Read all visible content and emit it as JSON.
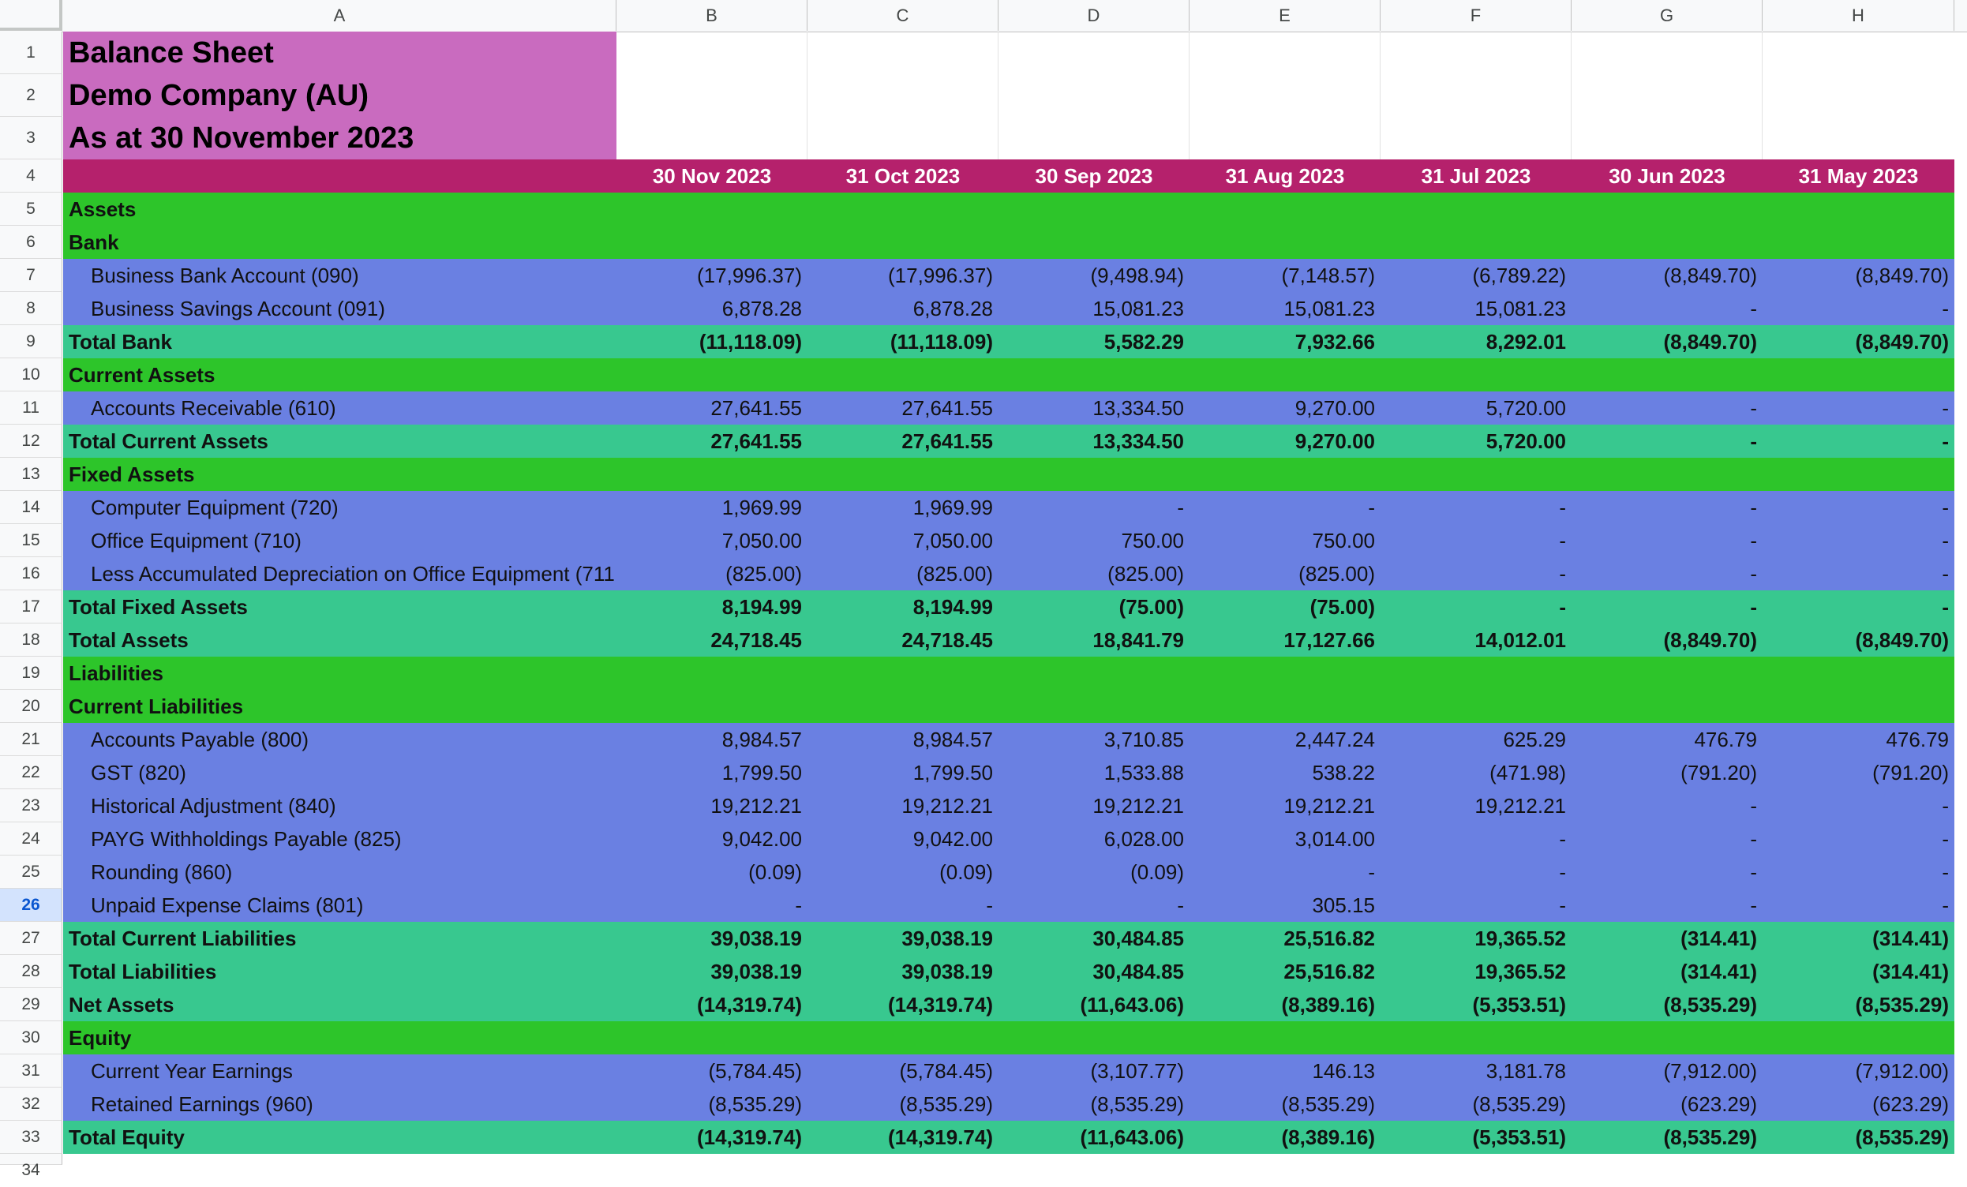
{
  "columns": [
    "A",
    "B",
    "C",
    "D",
    "E",
    "F",
    "G",
    "H"
  ],
  "selected_row": 26,
  "colors": {
    "title_bg": "#c96bbf",
    "date_header_bg": "#b5216c",
    "section_bg": "#2dc52a",
    "item_bg": "#6a80e2",
    "total_bg": "#38c88f",
    "negative_text": "#e0242c"
  },
  "title_lines": [
    "Balance Sheet",
    "Demo Company (AU)",
    "As at 30 November 2023"
  ],
  "dates": [
    "30 Nov 2023",
    "31 Oct 2023",
    "30 Sep 2023",
    "31 Aug 2023",
    "31 Jul 2023",
    "30 Jun 2023",
    "31 May 2023"
  ],
  "rows": [
    {
      "n": 5,
      "type": "section",
      "label": "Assets",
      "values": []
    },
    {
      "n": 6,
      "type": "section",
      "label": "Bank",
      "values": []
    },
    {
      "n": 7,
      "type": "item",
      "label": "Business Bank Account (090)",
      "values": [
        "(17,996.37)",
        "(17,996.37)",
        "(9,498.94)",
        "(7,148.57)",
        "(6,789.22)",
        "(8,849.70)",
        "(8,849.70)"
      ]
    },
    {
      "n": 8,
      "type": "item",
      "label": "Business Savings Account (091)",
      "values": [
        "6,878.28",
        "6,878.28",
        "15,081.23",
        "15,081.23",
        "15,081.23",
        "-",
        "-"
      ]
    },
    {
      "n": 9,
      "type": "total",
      "label": "Total Bank",
      "values": [
        "(11,118.09)",
        "(11,118.09)",
        "5,582.29",
        "7,932.66",
        "8,292.01",
        "(8,849.70)",
        "(8,849.70)"
      ]
    },
    {
      "n": 10,
      "type": "section",
      "label": "Current Assets",
      "values": []
    },
    {
      "n": 11,
      "type": "item",
      "label": "Accounts Receivable (610)",
      "values": [
        "27,641.55",
        "27,641.55",
        "13,334.50",
        "9,270.00",
        "5,720.00",
        "-",
        "-"
      ]
    },
    {
      "n": 12,
      "type": "total",
      "label": "Total Current Assets",
      "values": [
        "27,641.55",
        "27,641.55",
        "13,334.50",
        "9,270.00",
        "5,720.00",
        "-",
        "-"
      ]
    },
    {
      "n": 13,
      "type": "section",
      "label": "Fixed Assets",
      "values": []
    },
    {
      "n": 14,
      "type": "item",
      "label": "Computer Equipment (720)",
      "values": [
        "1,969.99",
        "1,969.99",
        "-",
        "-",
        "-",
        "-",
        "-"
      ]
    },
    {
      "n": 15,
      "type": "item",
      "label": "Office Equipment (710)",
      "values": [
        "7,050.00",
        "7,050.00",
        "750.00",
        "750.00",
        "-",
        "-",
        "-"
      ]
    },
    {
      "n": 16,
      "type": "item",
      "label": "Less Accumulated Depreciation on Office Equipment (711",
      "values": [
        "(825.00)",
        "(825.00)",
        "(825.00)",
        "(825.00)",
        "-",
        "-",
        "-"
      ]
    },
    {
      "n": 17,
      "type": "total",
      "label": "Total Fixed Assets",
      "values": [
        "8,194.99",
        "8,194.99",
        "(75.00)",
        "(75.00)",
        "-",
        "-",
        "-"
      ]
    },
    {
      "n": 18,
      "type": "total",
      "label": "Total Assets",
      "values": [
        "24,718.45",
        "24,718.45",
        "18,841.79",
        "17,127.66",
        "14,012.01",
        "(8,849.70)",
        "(8,849.70)"
      ]
    },
    {
      "n": 19,
      "type": "section",
      "label": "Liabilities",
      "values": []
    },
    {
      "n": 20,
      "type": "section",
      "label": "Current Liabilities",
      "values": []
    },
    {
      "n": 21,
      "type": "item",
      "label": "Accounts Payable (800)",
      "values": [
        "8,984.57",
        "8,984.57",
        "3,710.85",
        "2,447.24",
        "625.29",
        "476.79",
        "476.79"
      ]
    },
    {
      "n": 22,
      "type": "item",
      "label": "GST (820)",
      "values": [
        "1,799.50",
        "1,799.50",
        "1,533.88",
        "538.22",
        "(471.98)",
        "(791.20)",
        "(791.20)"
      ]
    },
    {
      "n": 23,
      "type": "item",
      "label": "Historical Adjustment (840)",
      "values": [
        "19,212.21",
        "19,212.21",
        "19,212.21",
        "19,212.21",
        "19,212.21",
        "-",
        "-"
      ]
    },
    {
      "n": 24,
      "type": "item",
      "label": "PAYG Withholdings Payable (825)",
      "values": [
        "9,042.00",
        "9,042.00",
        "6,028.00",
        "3,014.00",
        "-",
        "-",
        "-"
      ]
    },
    {
      "n": 25,
      "type": "item",
      "label": "Rounding (860)",
      "values": [
        "(0.09)",
        "(0.09)",
        "(0.09)",
        "-",
        "-",
        "-",
        "-"
      ]
    },
    {
      "n": 26,
      "type": "item",
      "label": "Unpaid Expense Claims (801)",
      "values": [
        "-",
        "-",
        "-",
        "305.15",
        "-",
        "-",
        "-"
      ]
    },
    {
      "n": 27,
      "type": "total",
      "label": "Total Current Liabilities",
      "values": [
        "39,038.19",
        "39,038.19",
        "30,484.85",
        "25,516.82",
        "19,365.52",
        "(314.41)",
        "(314.41)"
      ]
    },
    {
      "n": 28,
      "type": "total",
      "label": "Total Liabilities",
      "values": [
        "39,038.19",
        "39,038.19",
        "30,484.85",
        "25,516.82",
        "19,365.52",
        "(314.41)",
        "(314.41)"
      ]
    },
    {
      "n": 29,
      "type": "total",
      "label": "Net Assets",
      "values": [
        "(14,319.74)",
        "(14,319.74)",
        "(11,643.06)",
        "(8,389.16)",
        "(5,353.51)",
        "(8,535.29)",
        "(8,535.29)"
      ]
    },
    {
      "n": 30,
      "type": "section",
      "label": "Equity",
      "values": []
    },
    {
      "n": 31,
      "type": "item",
      "label": "Current Year Earnings",
      "values": [
        "(5,784.45)",
        "(5,784.45)",
        "(3,107.77)",
        "146.13",
        "3,181.78",
        "(7,912.00)",
        "(7,912.00)"
      ]
    },
    {
      "n": 32,
      "type": "item",
      "label": "Retained Earnings (960)",
      "values": [
        "(8,535.29)",
        "(8,535.29)",
        "(8,535.29)",
        "(8,535.29)",
        "(8,535.29)",
        "(623.29)",
        "(623.29)"
      ]
    },
    {
      "n": 33,
      "type": "total",
      "label": "Total Equity",
      "values": [
        "(14,319.74)",
        "(14,319.74)",
        "(11,643.06)",
        "(8,389.16)",
        "(5,353.51)",
        "(8,535.29)",
        "(8,535.29)"
      ]
    }
  ],
  "partial_row_number": 34
}
